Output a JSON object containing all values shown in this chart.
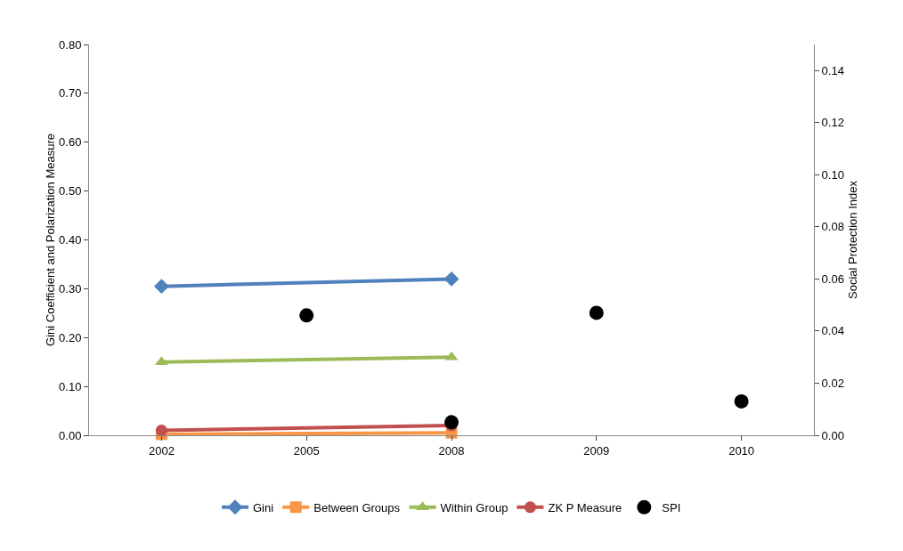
{
  "chart_data": {
    "type": "line",
    "ylabel": "Gini Coefficient and Polarization Measure",
    "y2label": "Social Protection Index",
    "categories": [
      "2002",
      "2005",
      "2008",
      "2009",
      "2010"
    ],
    "series": [
      {
        "name": "Gini",
        "color": "#4f81bd",
        "marker": "diamond",
        "values": [
          0.305,
          null,
          0.32,
          null,
          null
        ]
      },
      {
        "name": "Between Groups",
        "color": "#f79646",
        "marker": "square",
        "values": [
          0.002,
          null,
          0.005,
          null,
          null
        ]
      },
      {
        "name": "Within Group",
        "color": "#9bbb59",
        "marker": "triangle",
        "values": [
          0.15,
          null,
          0.16,
          null,
          null
        ]
      },
      {
        "name": "ZK P Measure",
        "color": "#c0504d",
        "marker": "circle",
        "values": [
          0.01,
          null,
          0.02,
          null,
          null
        ]
      },
      {
        "name": "SPI",
        "type": "scatter",
        "axis": "y2",
        "color": "#000000",
        "marker": "circle",
        "values": [
          null,
          0.046,
          0.005,
          0.047,
          0.013
        ]
      }
    ],
    "ylim": [
      0,
      0.8
    ],
    "yticks": [
      {
        "value": 0,
        "label": "0.00"
      },
      {
        "value": 0.1,
        "label": "0.10"
      },
      {
        "value": 0.2,
        "label": "0.20"
      },
      {
        "value": 0.3,
        "label": "0.30"
      },
      {
        "value": 0.4,
        "label": "0.40"
      },
      {
        "value": 0.5,
        "label": "0.50"
      },
      {
        "value": 0.6,
        "label": "0.60"
      },
      {
        "value": 0.7,
        "label": "0.70"
      },
      {
        "value": 0.8,
        "label": "0.80"
      }
    ],
    "y2lim": [
      0,
      0.15
    ],
    "y2ticks": [
      {
        "value": 0,
        "label": "0.00"
      },
      {
        "value": 0.02,
        "label": "0.02"
      },
      {
        "value": 0.04,
        "label": "0.04"
      },
      {
        "value": 0.06,
        "label": "0.06"
      },
      {
        "value": 0.08,
        "label": "0.08"
      },
      {
        "value": 0.1,
        "label": "0.10"
      },
      {
        "value": 0.12,
        "label": "0.12"
      },
      {
        "value": 0.14,
        "label": "0.14"
      }
    ],
    "grid": false,
    "legend": "bottom"
  }
}
